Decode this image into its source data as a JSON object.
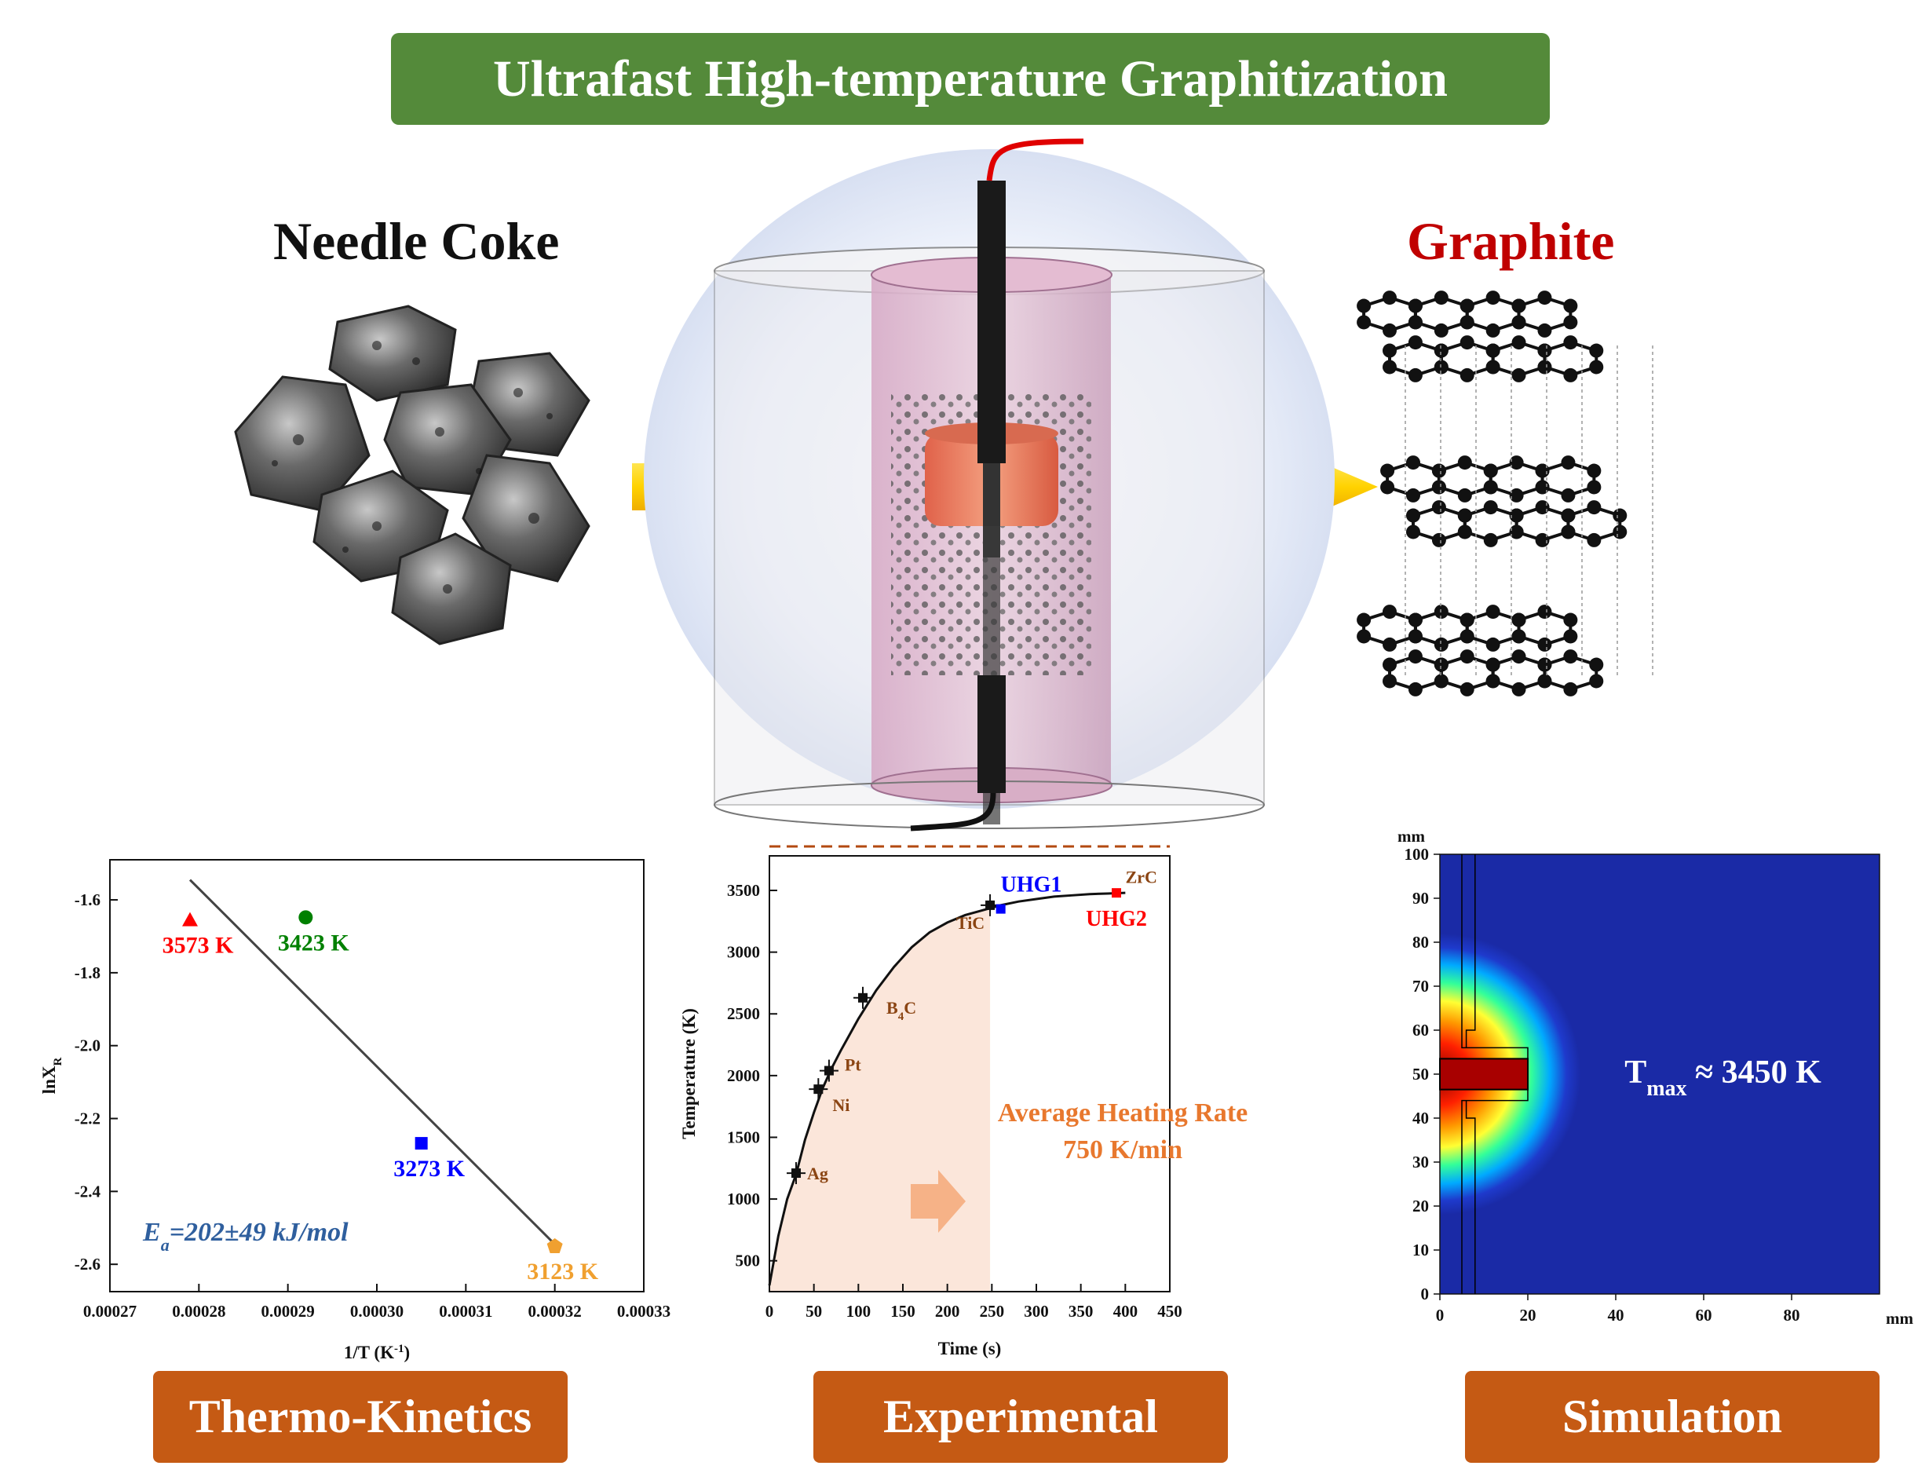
{
  "header": {
    "title": "Ultrafast High-temperature Graphitization"
  },
  "top": {
    "left_label": "Needle Coke",
    "right_label": "Graphite"
  },
  "sections": {
    "kinetics": "Thermo-Kinetics",
    "experimental": "Experimental",
    "simulation": "Simulation"
  },
  "colors": {
    "banner": "#548a3a",
    "section": "#c55a14",
    "graphite": "#c00000"
  },
  "kinetics_chart": {
    "type": "scatter",
    "xlabel": "1/T (K",
    "xlabel_sup": "-1",
    "xlabel_end": ")",
    "ylabel": "lnX",
    "ylabel_sub": "R",
    "xlim": [
      0.00027,
      0.00033
    ],
    "ylim": [
      -2.675,
      -1.49
    ],
    "xticks": [
      "0.00027",
      "0.00028",
      "0.00029",
      "0.00030",
      "0.00031",
      "0.00032",
      "0.00033"
    ],
    "yticks": [
      "-1.6",
      "-1.8",
      "-2.0",
      "-2.2",
      "-2.4",
      "-2.6"
    ],
    "fit_line": {
      "x": [
        0.000279,
        0.00032
      ],
      "y": [
        -1.545,
        -2.545
      ]
    },
    "points": [
      {
        "label": "3573 K",
        "x": 0.000279,
        "y": -1.655,
        "marker": "triangle",
        "color": "#ff0000"
      },
      {
        "label": "3423 K",
        "x": 0.000292,
        "y": -1.648,
        "marker": "circle",
        "color": "#008000"
      },
      {
        "label": "3273 K",
        "x": 0.000305,
        "y": -2.268,
        "marker": "square",
        "color": "#0000ff"
      },
      {
        "label": "3123 K",
        "x": 0.00032,
        "y": -2.55,
        "marker": "pentagon",
        "color": "#f0a030"
      }
    ],
    "annotation": {
      "text": "=202±49 kJ/mol",
      "symbol": "E",
      "sub": "a"
    }
  },
  "temp_chart": {
    "type": "line",
    "xlabel": "Time (s)",
    "ylabel": "Temperature (K)",
    "xlim": [
      0,
      450
    ],
    "ylim": [
      250,
      3780
    ],
    "xticks": [
      "0",
      "50",
      "100",
      "150",
      "200",
      "250",
      "300",
      "350",
      "400",
      "450"
    ],
    "yticks": [
      "500",
      "1000",
      "1500",
      "2000",
      "2500",
      "3000",
      "3500"
    ],
    "curve": {
      "x": [
        0,
        10,
        20,
        30,
        40,
        50,
        60,
        70,
        80,
        90,
        100,
        120,
        140,
        160,
        180,
        200,
        220,
        240,
        260,
        280,
        300,
        320,
        340,
        360,
        380,
        400
      ],
      "y": [
        300,
        700,
        1000,
        1200,
        1480,
        1700,
        1900,
        2060,
        2200,
        2330,
        2460,
        2690,
        2880,
        3040,
        3160,
        3240,
        3300,
        3340,
        3380,
        3410,
        3430,
        3450,
        3460,
        3470,
        3475,
        3480
      ]
    },
    "dashed_level": 3820,
    "points": [
      {
        "label": "Ag",
        "x": 30,
        "y": 1210,
        "color": "#8b4513"
      },
      {
        "label": "Ni",
        "x": 55,
        "y": 1890,
        "color": "#8b4513"
      },
      {
        "label": "Pt",
        "x": 67,
        "y": 2040,
        "color": "#8b4513"
      },
      {
        "label": "C",
        "prefix": "B",
        "sub": "4",
        "x": 105,
        "y": 2630,
        "color": "#8b4513"
      },
      {
        "label": "TiC",
        "x": 248,
        "y": 3380,
        "color": "#8b4513"
      },
      {
        "label": "UHG1",
        "x": 260,
        "y": 3350,
        "color": "#0000ff"
      },
      {
        "label": "UHG2",
        "x": 390,
        "y": 3480,
        "color": "#ff0000"
      },
      {
        "label": "ZrC",
        "x": 418,
        "y": 3560,
        "color": "#8b4513"
      }
    ],
    "shade_until": 248,
    "annotation_line1": "Average Heating Rate",
    "annotation_line2": "750 K/min"
  },
  "sim_chart": {
    "unit": "mm",
    "xticks": [
      "0",
      "20",
      "40",
      "60",
      "80"
    ],
    "yticks": [
      "0",
      "10",
      "20",
      "30",
      "40",
      "50",
      "60",
      "70",
      "80",
      "90",
      "100"
    ],
    "xlim": [
      0,
      100
    ],
    "ylim": [
      0,
      100
    ],
    "tmax_label": "T",
    "tmax_sub": "max",
    "tmax_value": " ≈ 3450 K"
  }
}
